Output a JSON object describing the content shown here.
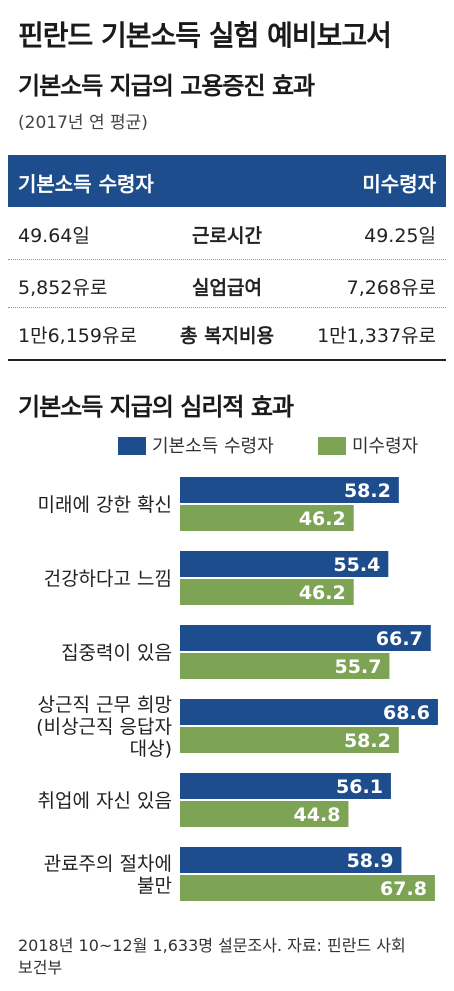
{
  "header": {
    "title": "핀란드 기본소득 실험 예비보고서"
  },
  "employment": {
    "title": "기본소득 지급의 고용증진 효과",
    "subtitle": "(2017년 연 평균)",
    "col_left": "기본소득 수령자",
    "col_right": "미수령자",
    "rows": [
      {
        "left": "49.64일",
        "label": "근로시간",
        "right": "49.25일"
      },
      {
        "left": "5,852유로",
        "label": "실업급여",
        "right": "7,268유로"
      },
      {
        "left": "1만6,159유로",
        "label": "총 복지비용",
        "right": "1만1,337유로"
      }
    ]
  },
  "psych": {
    "title": "기본소득 지급의 심리적 효과",
    "legend": [
      "기본소득 수령자",
      "미수령자"
    ]
  },
  "colors": {
    "recipient": "#1d4d8c",
    "non_recipient": "#7da454"
  },
  "chart_data": {
    "type": "bar",
    "orientation": "horizontal",
    "categories": [
      [
        "미래에 강한 확신"
      ],
      [
        "건강하다고 느낌"
      ],
      [
        "집중력이 있음"
      ],
      [
        "상근직 근무 희망",
        "(비상근직 응답자",
        "대상)"
      ],
      [
        "취업에 자신 있음"
      ],
      [
        "관료주의 절차에",
        "불만"
      ]
    ],
    "series": [
      {
        "name": "기본소득 수령자",
        "values": [
          58.2,
          55.4,
          66.7,
          68.6,
          56.1,
          58.9
        ]
      },
      {
        "name": "미수령자",
        "values": [
          46.2,
          46.2,
          55.7,
          58.2,
          44.8,
          67.8
        ]
      }
    ],
    "value_labels": [
      [
        "58.2",
        "55.4",
        "66.7",
        "68.6",
        "56.1",
        "58.9"
      ],
      [
        "46.2",
        "46.2",
        "55.7",
        "58.2",
        "44.8",
        "67.8"
      ]
    ],
    "xlim": [
      0,
      70
    ],
    "legend": "top-right",
    "grid": false
  },
  "footer": {
    "source": "2018년 10~12월 1,633명 설문조사. 자료: 핀란드 사회보건부"
  }
}
